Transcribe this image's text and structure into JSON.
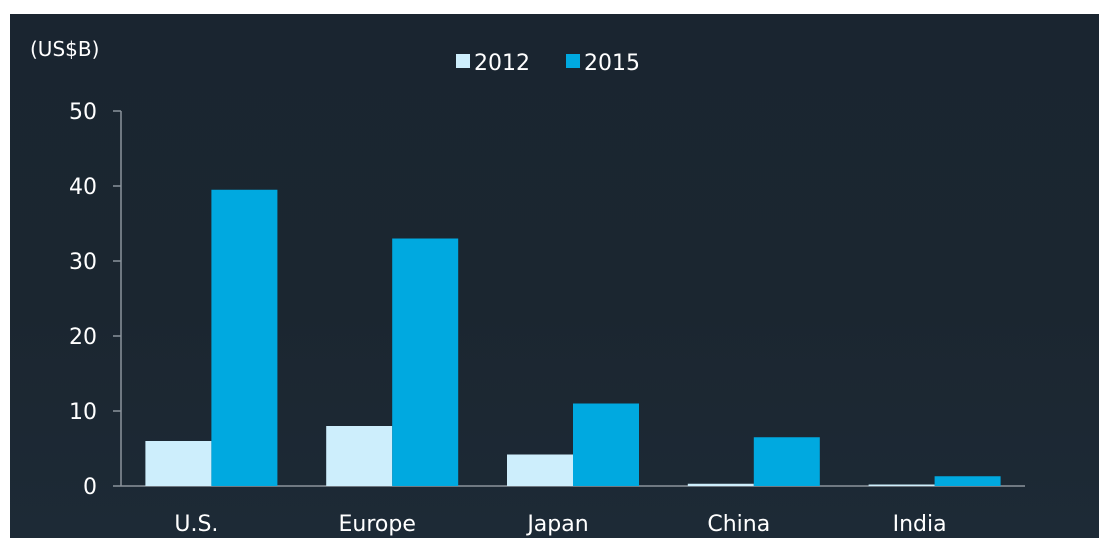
{
  "chart_data": {
    "type": "bar",
    "title": "",
    "unit_label": "(US$B)",
    "xlabel": "",
    "ylabel": "",
    "categories": [
      "U.S.",
      "Europe",
      "Japan",
      "China",
      "India"
    ],
    "series": [
      {
        "name": "2012",
        "color": "#cdeefc",
        "values": [
          6,
          8,
          4.2,
          0.3,
          0.1
        ]
      },
      {
        "name": "2015",
        "color": "#00a9e0",
        "values": [
          39.5,
          33,
          11,
          6.5,
          1.3
        ]
      }
    ],
    "ylim": [
      0,
      50
    ],
    "yticks": [
      0,
      10,
      20,
      30,
      40,
      50
    ],
    "grid": false,
    "legend_position": "top-center",
    "background": "#1b2630"
  }
}
